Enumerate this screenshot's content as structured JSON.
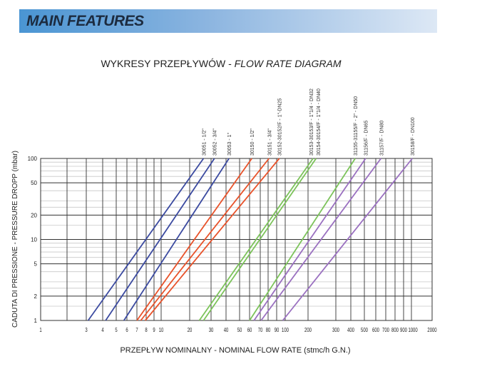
{
  "header": {
    "title": "MAIN FEATURES"
  },
  "chart_data": {
    "type": "line",
    "title_plain": "WYKRESY PRZEPŁYWÓW - ",
    "title_italic": "FLOW RATE DIAGRAM",
    "xlabel": "PRZEPŁYW NOMINALNY - NOMINAL FLOW RATE (stmc/h G.N.)",
    "ylabel": "CADUTA DI PRESSIONE - PRESSURE DROPP (mbar)",
    "xscale": "log",
    "yscale": "log",
    "xlim": [
      1,
      2000
    ],
    "ylim": [
      1,
      100
    ],
    "grid": true,
    "x_ticks": [
      "1",
      "3",
      "4",
      "5",
      "6",
      "7",
      "8",
      "9",
      "10",
      "20",
      "30",
      "40",
      "50",
      "60",
      "70",
      "80",
      "90",
      "100",
      "200",
      "300",
      "400",
      "500",
      "600",
      "700",
      "800",
      "900",
      "1000",
      "2000"
    ],
    "y_ticks": [
      "1",
      "2",
      "5",
      "10",
      "20",
      "50",
      "100"
    ],
    "series": [
      {
        "name": "30051 - 1/2\"",
        "color": "#3b4aa0",
        "x": [
          3.1,
          26
        ],
        "y": [
          1,
          100
        ]
      },
      {
        "name": "30052 - 3/4\"",
        "color": "#3b4aa0",
        "x": [
          4.2,
          32
        ],
        "y": [
          1,
          100
        ]
      },
      {
        "name": "30053 - 1\"",
        "color": "#3b4aa0",
        "x": [
          5.7,
          42
        ],
        "y": [
          1,
          100
        ]
      },
      {
        "name": "30150 - 1/2\"",
        "color": "#e8522a",
        "x": [
          7.0,
          62
        ],
        "y": [
          1,
          100
        ]
      },
      {
        "name": "30151 - 3/4\"",
        "color": "#e8522a",
        "x": [
          7.4,
          81
        ],
        "y": [
          1,
          100
        ]
      },
      {
        "name": "30152-30152/F - 1\"-DN25",
        "color": "#e8522a",
        "x": [
          7.9,
          93
        ],
        "y": [
          1,
          100
        ]
      },
      {
        "name": "30153-30153/F - 1\"1/4 - DN32",
        "color": "#7cc35a",
        "x": [
          24,
          215
        ],
        "y": [
          1,
          100
        ]
      },
      {
        "name": "30154-30154/F - 1\"1/4 - DN40",
        "color": "#7cc35a",
        "x": [
          26,
          225
        ],
        "y": [
          1,
          100
        ]
      },
      {
        "name": "31155-31155/F - 2\" - DN50",
        "color": "#7cc35a",
        "x": [
          60,
          430
        ],
        "y": [
          1,
          100
        ]
      },
      {
        "name": "31156/F - DN65",
        "color": "#9a70c0",
        "x": [
          64,
          510
        ],
        "y": [
          1,
          100
        ]
      },
      {
        "name": "31157/F - DN80",
        "color": "#9a70c0",
        "x": [
          71,
          650
        ],
        "y": [
          1,
          100
        ]
      },
      {
        "name": "30158/F - DN100",
        "color": "#9a70c0",
        "x": [
          97,
          1030
        ],
        "y": [
          1,
          100
        ]
      }
    ]
  }
}
